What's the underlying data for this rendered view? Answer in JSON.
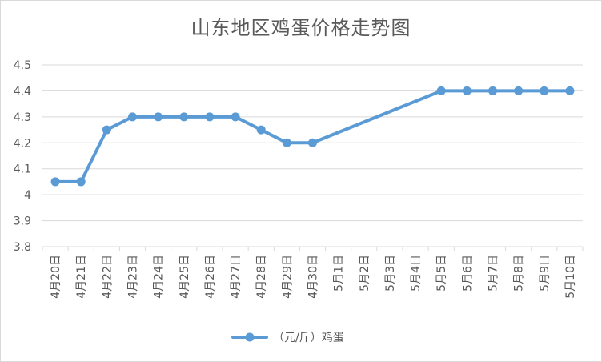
{
  "chart_data": {
    "type": "line",
    "title": "山东地区鸡蛋价格走势图",
    "xlabel": "",
    "ylabel": "",
    "categories": [
      "4月20日",
      "4月21日",
      "4月22日",
      "4月23日",
      "4月24日",
      "4月25日",
      "4月26日",
      "4月27日",
      "4月28日",
      "4月29日",
      "4月30日",
      "5月1日",
      "5月2日",
      "5月3日",
      "5月4日",
      "5月5日",
      "5月6日",
      "5月7日",
      "5月8日",
      "5月9日",
      "5月10日"
    ],
    "series": [
      {
        "name": "（元/斤）鸡蛋",
        "values": [
          4.05,
          4.05,
          4.25,
          4.3,
          4.3,
          4.3,
          4.3,
          4.3,
          4.25,
          4.2,
          4.2,
          null,
          null,
          null,
          null,
          4.4,
          4.4,
          4.4,
          4.4,
          4.4,
          4.4
        ],
        "color": "#5b9bd5"
      }
    ],
    "ylim": [
      3.8,
      4.5
    ],
    "yticks": [
      "3.8",
      "3.9",
      "4",
      "4.1",
      "4.2",
      "4.3",
      "4.4",
      "4.5"
    ],
    "grid": true,
    "legend": "bottom"
  }
}
